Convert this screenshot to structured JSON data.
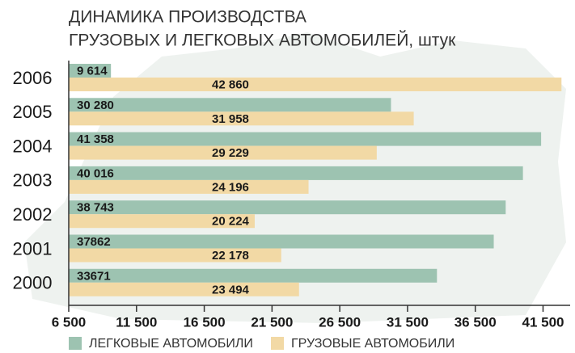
{
  "chart_data": {
    "type": "hbar",
    "title": [
      "ДИНАМИКА ПРОИЗВОДСТВА",
      "ГРУЗОВЫХ И ЛЕГКОВЫХ АВТОМОБИЛЕЙ, штук"
    ],
    "categories": [
      "2006",
      "2005",
      "2004",
      "2003",
      "2002",
      "2001",
      "2000"
    ],
    "series": [
      {
        "name": "ЛЕГКОВЫЕ АВТОМОБИЛИ",
        "color": "#9dc3b1",
        "values": [
          9614,
          30280,
          41358,
          40016,
          38743,
          37862,
          33671
        ],
        "value_labels": [
          "9 614",
          "30 280",
          "41 358",
          "40 016",
          "38 743",
          "37862",
          "33671"
        ]
      },
      {
        "name": "ГРУЗОВЫЕ АВТОМОБИЛИ",
        "color": "#f2d9a5",
        "values": [
          42860,
          31958,
          29229,
          24196,
          20224,
          22178,
          23494
        ],
        "value_labels": [
          "42 860",
          "31 958",
          "29 229",
          "24 196",
          "20 224",
          "22 178",
          "23 494"
        ]
      }
    ],
    "xlim": [
      6500,
      43500
    ],
    "xticks": [
      {
        "value": 6500,
        "label": "6 500"
      },
      {
        "value": 11500,
        "label": "11 500"
      },
      {
        "value": 16500,
        "label": "16 500"
      },
      {
        "value": 21500,
        "label": "21 500"
      },
      {
        "value": 26500,
        "label": "26 500"
      },
      {
        "value": 31500,
        "label": "31 500"
      },
      {
        "value": 36500,
        "label": "36 500"
      },
      {
        "value": 41500,
        "label": "41 500"
      }
    ]
  }
}
